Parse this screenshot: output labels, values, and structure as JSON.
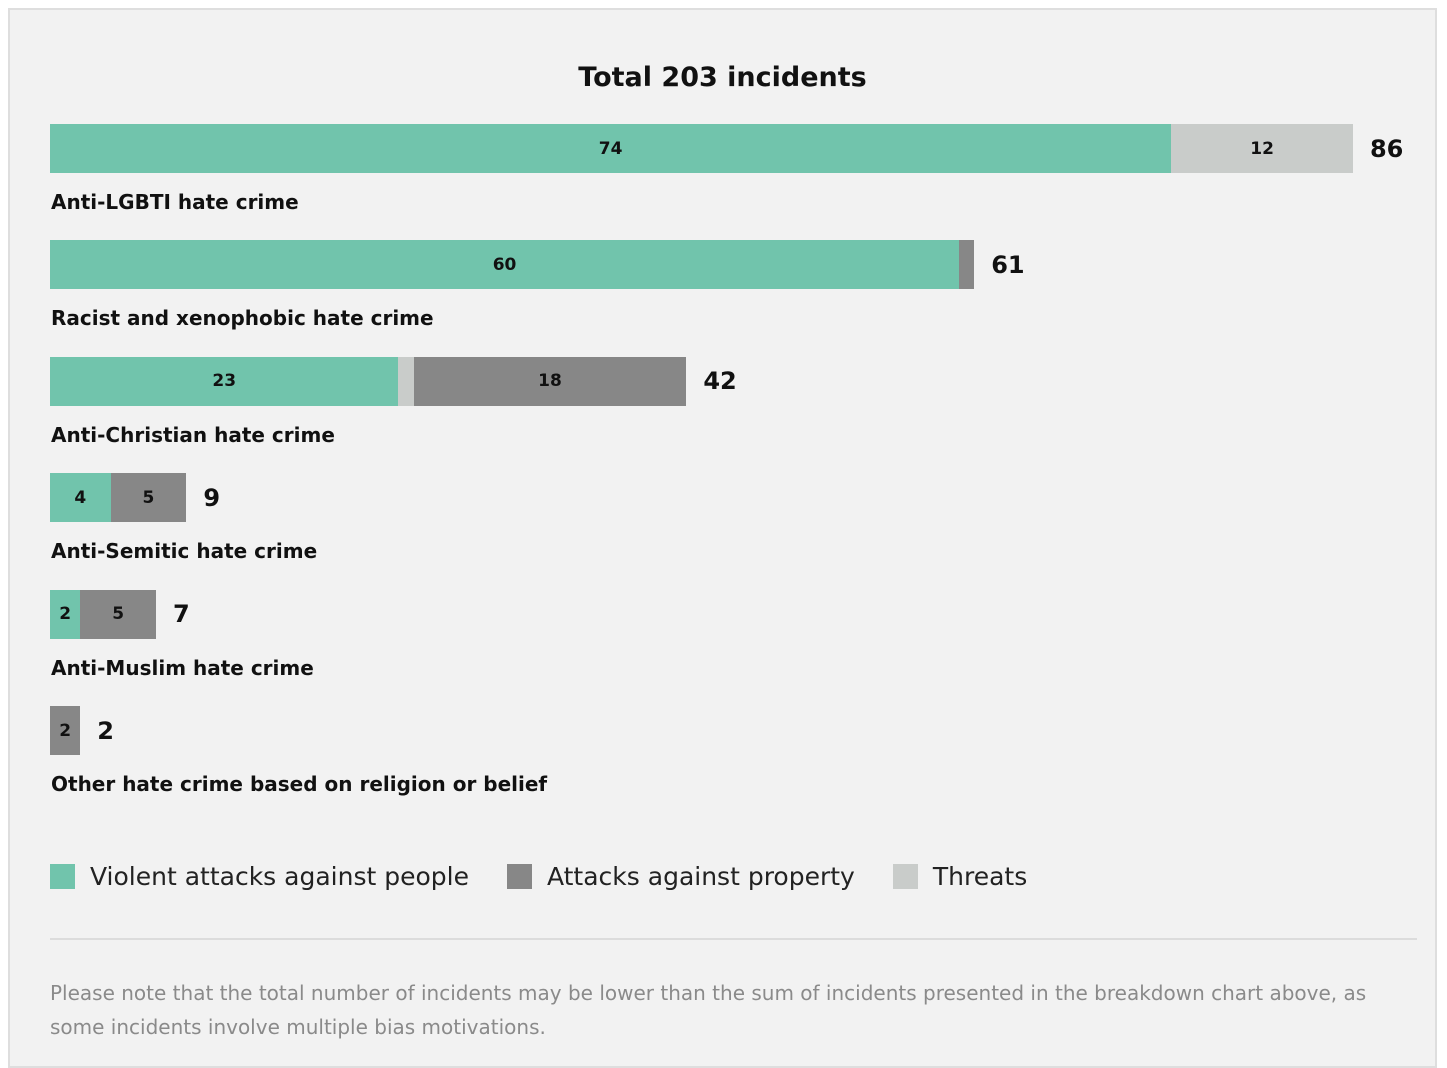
{
  "colors": {
    "violent": "#71c4ac",
    "property": "#878787",
    "threats": "#c9ccca"
  },
  "chart_data": {
    "type": "bar",
    "orientation": "horizontal",
    "stacked": true,
    "title": "Total 203 incidents",
    "categories": [
      "Anti-LGBTI hate crime",
      "Racist and xenophobic hate crime",
      "Anti-Christian hate crime",
      "Anti-Semitic hate crime",
      "Anti-Muslim hate crime",
      "Other hate crime based on religion or belief"
    ],
    "series": [
      {
        "name": "Violent attacks against people",
        "values": [
          74,
          60,
          23,
          4,
          2,
          0
        ],
        "labels": [
          "74",
          "60",
          "23",
          "4",
          "2",
          ""
        ]
      },
      {
        "name": "Attacks against property",
        "values": [
          0,
          1,
          18,
          5,
          5,
          2
        ],
        "labels": [
          "",
          "",
          "18",
          "5",
          "5",
          "2"
        ]
      },
      {
        "name": "Threats",
        "values": [
          12,
          0,
          1,
          0,
          0,
          0
        ],
        "labels": [
          "12",
          "",
          "",
          "",
          "",
          ""
        ]
      }
    ],
    "totals": [
      "86",
      "61",
      "42",
      "9",
      "7",
      "2"
    ],
    "legend_position": "bottom-left",
    "xlim": [
      0,
      86
    ],
    "grid": false
  },
  "footnote": "Please note that the total number of incidents may be lower than the sum of incidents presented in the breakdown chart above, as some incidents involve multiple bias motivations."
}
